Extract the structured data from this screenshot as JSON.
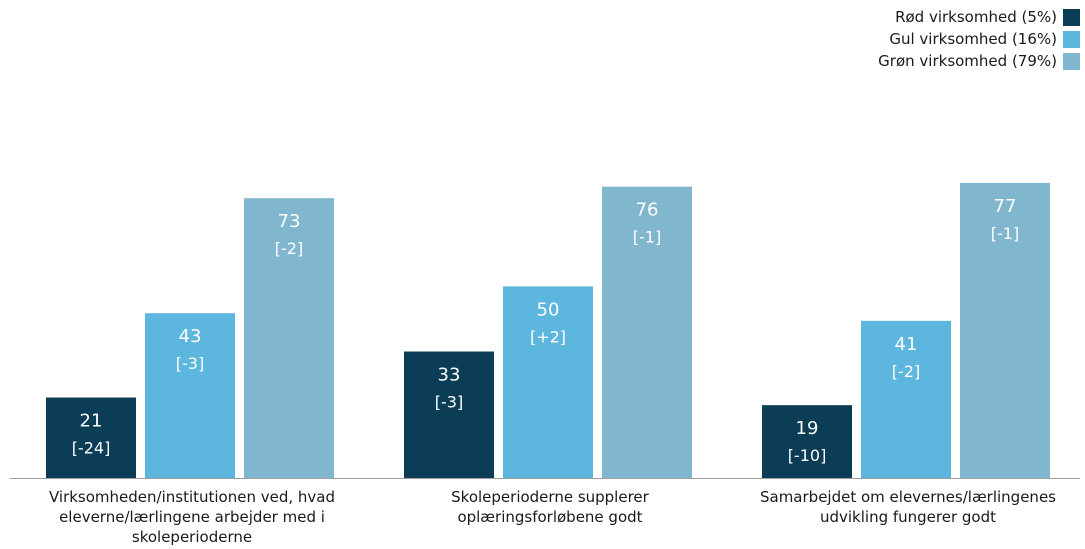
{
  "legend": {
    "items": [
      {
        "label": "Rød virksomhed (5%)",
        "color": "#0b3d56"
      },
      {
        "label": "Gul virksomhed (16%)",
        "color": "#5db6de"
      },
      {
        "label": "Grøn virksomhed (79%)",
        "color": "#80b7ce"
      }
    ]
  },
  "chart_data": {
    "type": "bar",
    "categories": [
      "Virksomheden/institutionen ved, hvad eleverne/lærlingene arbejder med i skoleperioderne",
      "Skoleperioderne supplerer oplæringsforløbene godt",
      "Samarbejdet om elevernes/lærlingenes udvikling fungerer godt"
    ],
    "series": [
      {
        "name": "Rød virksomhed (5%)",
        "color": "#0b3d56",
        "values": [
          21,
          33,
          19
        ],
        "changes": [
          "[-24]",
          "[-3]",
          "[-10]"
        ]
      },
      {
        "name": "Gul virksomhed (16%)",
        "color": "#5db6de",
        "values": [
          43,
          50,
          41
        ],
        "changes": [
          "[-3]",
          "[+2]",
          "[-2]"
        ]
      },
      {
        "name": "Grøn virksomhed (79%)",
        "color": "#80b7ce",
        "values": [
          73,
          76,
          77
        ],
        "changes": [
          "[-2]",
          "[-1]",
          "[-1]"
        ]
      }
    ],
    "ylim": [
      0,
      100
    ],
    "grid": false,
    "legend_position": "top-right"
  }
}
